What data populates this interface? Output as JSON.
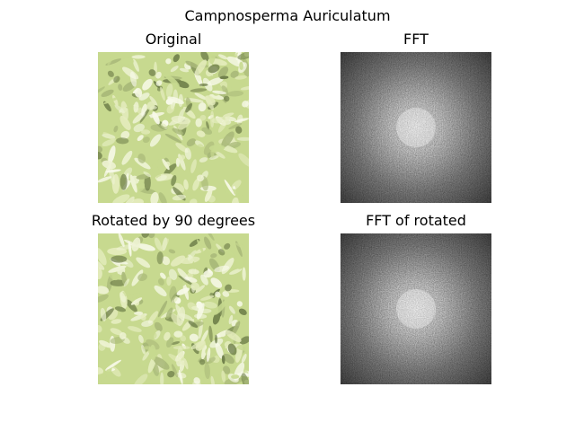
{
  "figure": {
    "title": "Campnosperma Auriculatum",
    "panels": [
      {
        "title": "Original",
        "kind": "photo-foliage"
      },
      {
        "title": "FFT",
        "kind": "fft-magnitude"
      },
      {
        "title": "Rotated by 90 degrees",
        "kind": "photo-foliage-rotated"
      },
      {
        "title": "FFT of rotated",
        "kind": "fft-magnitude"
      }
    ]
  },
  "colors": {
    "background": "#ffffff",
    "foliage_light": "#eef3d4",
    "foliage_mid": "#c7d98f",
    "foliage_dark": "#6f7f4a",
    "fft_dark": "#3a3a3a",
    "fft_light": "#ffffff"
  }
}
